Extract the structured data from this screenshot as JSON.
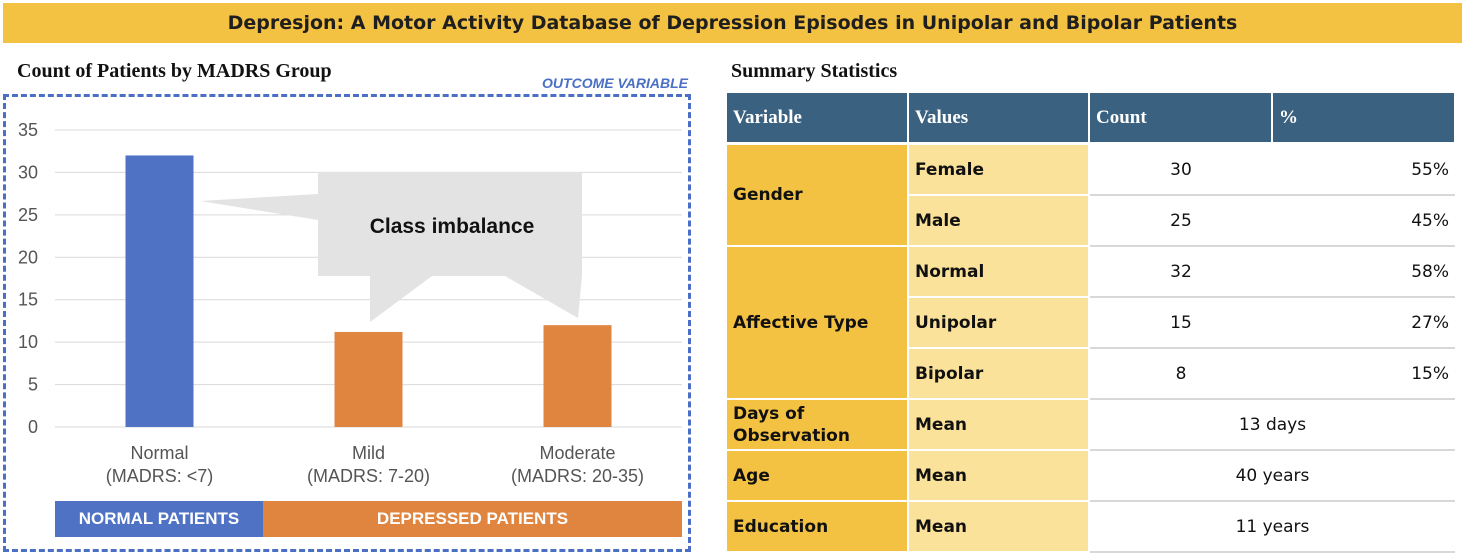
{
  "header": {
    "banner_title": "Depresjon: A Motor Activity Database of Depression Episodes in Unipolar and Bipolar Patients"
  },
  "chart_section": {
    "title": "Count of Patients by MADRS Group",
    "outcome_label": "OUTCOME VARIABLE",
    "callout_text": "Class imbalance",
    "bands": {
      "normal": "NORMAL PATIENTS",
      "depressed": "DEPRESSED PATIENTS"
    }
  },
  "chart_data": {
    "type": "bar",
    "categories": [
      [
        "Normal",
        "(MADRS: <7)"
      ],
      [
        "Mild",
        "(MADRS: 7-20)"
      ],
      [
        "Moderate",
        "(MADRS: 20-35)"
      ]
    ],
    "values": [
      32,
      11.2,
      12
    ],
    "bar_colors": [
      "#4f72c4",
      "#e0853f",
      "#e0853f"
    ],
    "ylim": [
      0,
      35
    ],
    "yticks": [
      0,
      5,
      10,
      15,
      20,
      25,
      30,
      35
    ],
    "grid": true
  },
  "table_section": {
    "title": "Summary Statistics",
    "headers": [
      "Variable",
      "Values",
      "Count",
      "%"
    ],
    "gender": {
      "label": "Gender",
      "rows": [
        {
          "value": "Female",
          "count": "30",
          "pct": "55%"
        },
        {
          "value": "Male",
          "count": "25",
          "pct": "45%"
        }
      ]
    },
    "affective": {
      "label": "Affective Type",
      "rows": [
        {
          "value": "Normal",
          "count": "32",
          "pct": "58%"
        },
        {
          "value": "Unipolar",
          "count": "15",
          "pct": "27%"
        },
        {
          "value": "Bipolar",
          "count": "8",
          "pct": "15%"
        }
      ]
    },
    "days": {
      "label_line1": "Days of",
      "label_line2": "Observation",
      "value": "Mean",
      "result": "13 days"
    },
    "age": {
      "label": "Age",
      "value": "Mean",
      "result": "40 years"
    },
    "education": {
      "label": "Education",
      "value": "Mean",
      "result": "11 years"
    }
  }
}
